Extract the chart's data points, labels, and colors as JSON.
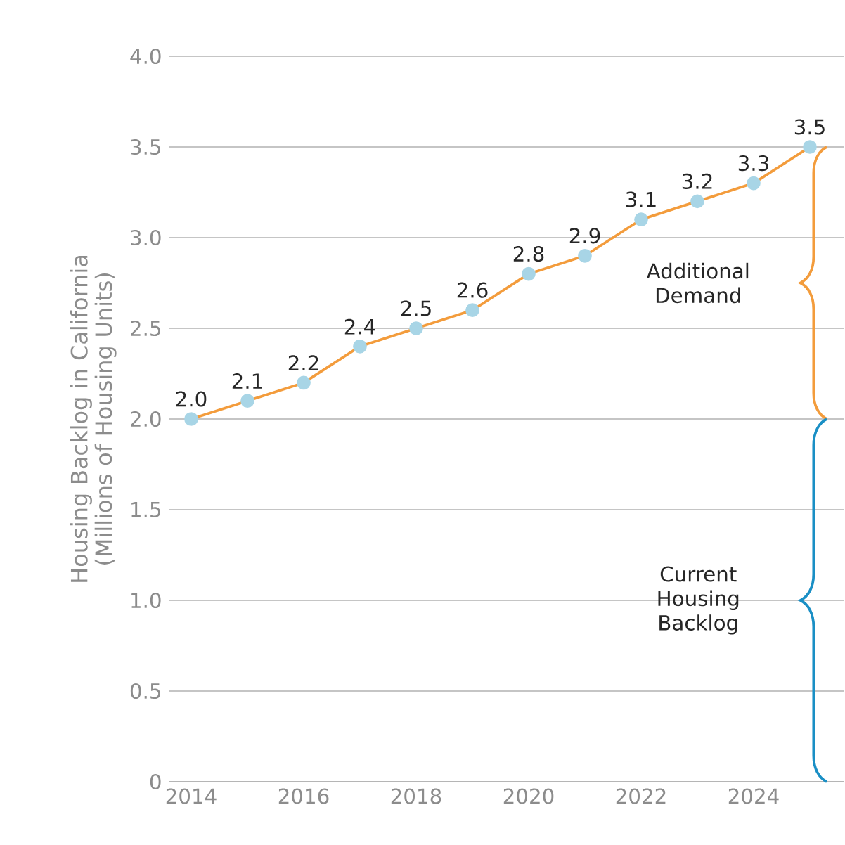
{
  "chart_data": {
    "type": "line",
    "ylabel": "Housing Backlog in California (Millions of Housing Units)",
    "x": [
      2014,
      2015,
      2016,
      2017,
      2018,
      2019,
      2020,
      2021,
      2022,
      2023,
      2024,
      2025
    ],
    "series": [
      {
        "color": "#f39c3c",
        "values": [
          2.0,
          2.1,
          2.2,
          2.4,
          2.5,
          2.6,
          2.8,
          2.9,
          3.1,
          3.2,
          3.3,
          3.5
        ],
        "value_labels": [
          "2.0",
          "2.1",
          "2.2",
          "2.4",
          "2.5",
          "2.6",
          "2.8",
          "2.9",
          "3.1",
          "3.2",
          "3.3",
          "3.5"
        ]
      }
    ],
    "marker": "circle",
    "xlim": [
      2013.6,
      2025.6
    ],
    "xticks": [
      2014,
      2016,
      2018,
      2020,
      2022,
      2024
    ],
    "ylim": [
      0,
      4
    ],
    "yticks": [
      0,
      {
        "value": 0.5,
        "label": "0.5"
      },
      {
        "value": 1,
        "label": "1.0"
      },
      {
        "value": 1.5,
        "label": "1.5"
      },
      {
        "value": 2,
        "label": "2.0"
      },
      {
        "value": 2.5,
        "label": "2.5"
      },
      {
        "value": 3,
        "label": "3.0"
      },
      {
        "value": 3.5,
        "label": "3.5"
      },
      {
        "value": 4,
        "label": "4.0"
      }
    ],
    "grid": "y",
    "annotations": [
      "Additional Demand",
      "Current Housing Backlog"
    ]
  }
}
